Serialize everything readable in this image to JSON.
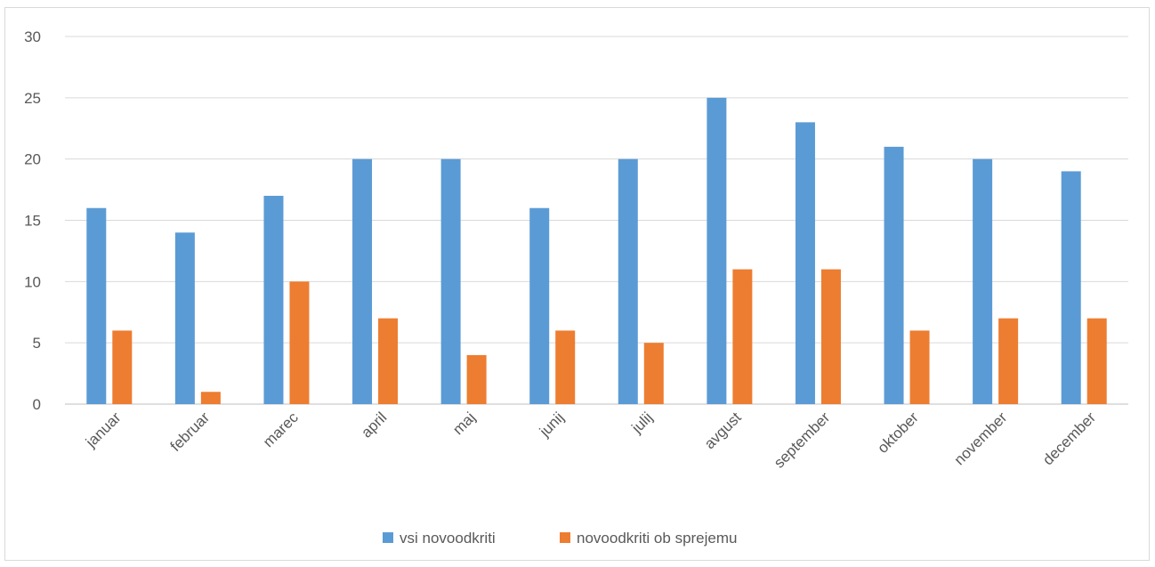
{
  "chart_data": {
    "type": "bar",
    "categories": [
      "januar",
      "februar",
      "marec",
      "april",
      "maj",
      "junij",
      "julij",
      "avgust",
      "september",
      "oktober",
      "november",
      "december"
    ],
    "series": [
      {
        "name": "vsi novoodkriti",
        "color": "#5b9bd5",
        "values": [
          16,
          14,
          17,
          20,
          20,
          16,
          20,
          25,
          23,
          21,
          20,
          19
        ]
      },
      {
        "name": "novoodkriti ob sprejemu",
        "color": "#ed7d31",
        "values": [
          6,
          1,
          10,
          7,
          4,
          6,
          5,
          11,
          11,
          6,
          7,
          7
        ]
      }
    ],
    "ylim": [
      0,
      30
    ],
    "yticks": [
      "0",
      "5",
      "10",
      "15",
      "20",
      "25",
      "30"
    ],
    "grid": true,
    "legend_position": "bottom",
    "gridline_color": "#d9d9d9",
    "axis_color": "#bfbfbf"
  }
}
